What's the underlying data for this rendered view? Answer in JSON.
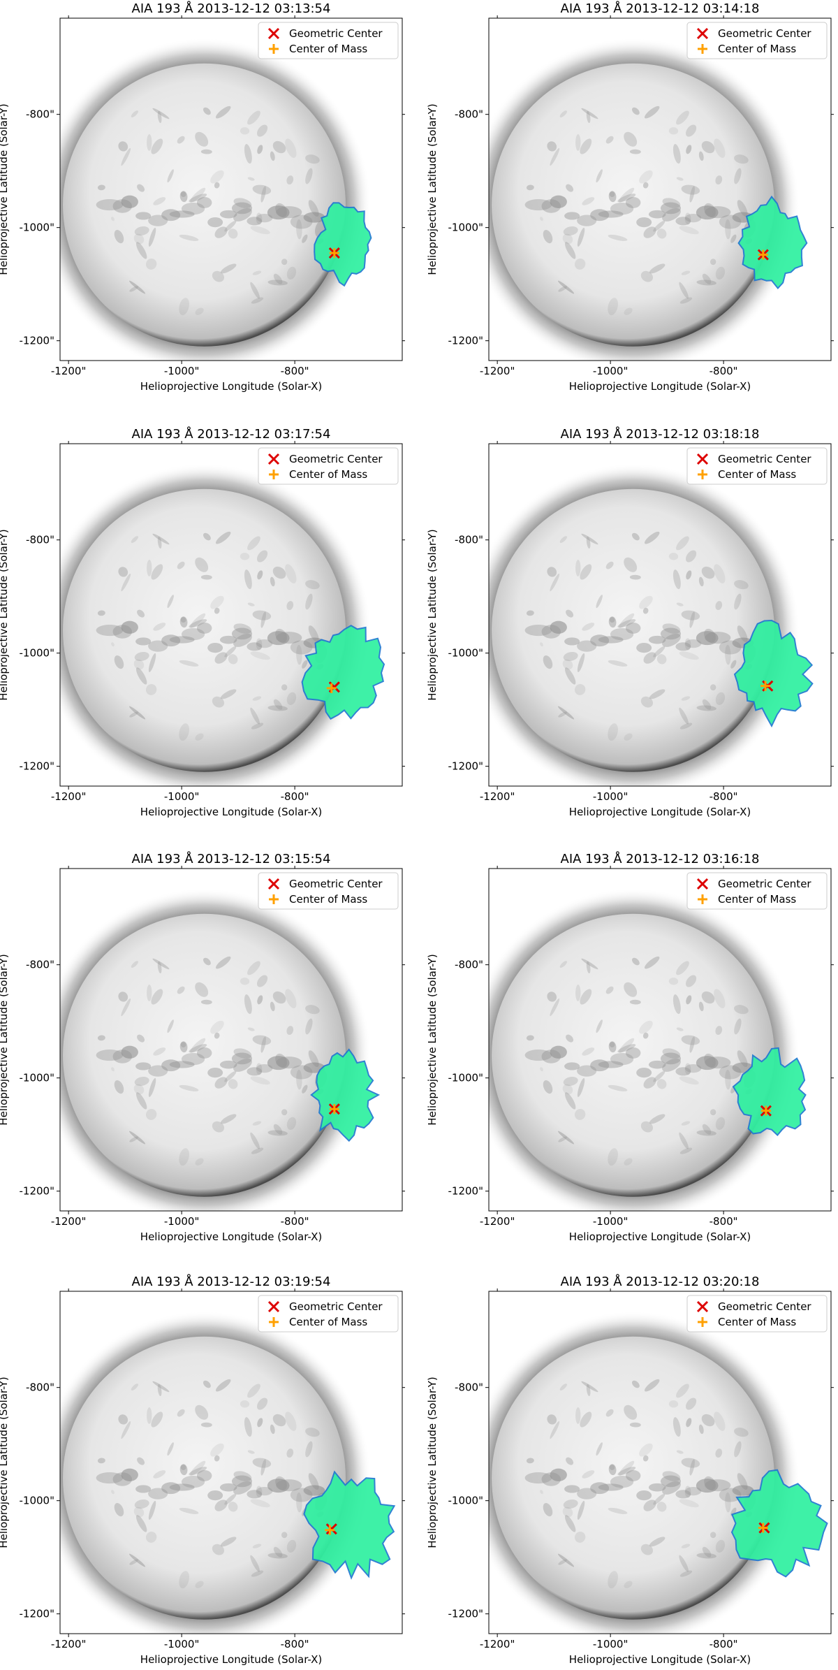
{
  "figure": {
    "legend": {
      "items": [
        {
          "label": "Geometric Center",
          "marker": "x",
          "color": "#dd0000"
        },
        {
          "label": "Center of Mass",
          "marker": "+",
          "color": "#ffa000"
        }
      ]
    },
    "colors": {
      "disk": "#f0f0f0",
      "disk_edge": "#3a3a3a",
      "dark_structure": "#555555",
      "mask_fill": "#2ef0a0",
      "mask_edge": "#1f78d0",
      "geometric_center": "#dd0000",
      "center_of_mass": "#ffa000"
    }
  },
  "chart_data": [
    {
      "type": "image",
      "title": "AIA 193 Å 2013-12-12 03:13:54",
      "xlabel": "Helioprojective Longitude (Solar-X)",
      "ylabel": "Helioprojective Latitude (Solar-Y)",
      "xlim": [
        -1215,
        -610
      ],
      "ylim": [
        -1235,
        -630
      ],
      "xticks": [
        "-1200\"",
        "-1000\"",
        "-800\""
      ],
      "xtick_values": [
        -1200,
        -1000,
        -800
      ],
      "yticks": [
        "-800\"",
        "-1000\"",
        "-1200\""
      ],
      "ytick_values": [
        -800,
        -1000,
        -1200
      ],
      "legend_position": "top-right",
      "geometric_center": [
        -730,
        -1045
      ],
      "center_of_mass": [
        -730,
        -1045
      ],
      "region_extent_x": [
        -770,
        -655
      ],
      "region_extent_y": [
        -1110,
        -950
      ]
    },
    {
      "type": "image",
      "title": "AIA 193 Å 2013-12-12 03:14:18",
      "xlabel": "Helioprojective Longitude (Solar-X)",
      "ylabel": "Helioprojective Latitude (Solar-Y)",
      "xlim": [
        -1215,
        -610
      ],
      "ylim": [
        -1235,
        -630
      ],
      "xticks": [
        "-1200\"",
        "-1000\"",
        "-800\""
      ],
      "xtick_values": [
        -1200,
        -1000,
        -800
      ],
      "yticks": [
        "-800\"",
        "-1000\"",
        "-1200\""
      ],
      "ytick_values": [
        -800,
        -1000,
        -1200
      ],
      "legend_position": "top-right",
      "geometric_center": [
        -730,
        -1048
      ],
      "center_of_mass": [
        -730,
        -1048
      ],
      "region_extent_x": [
        -780,
        -650
      ],
      "region_extent_y": [
        -1110,
        -945
      ]
    },
    {
      "type": "image",
      "title": "AIA 193 Å 2013-12-12 03:17:54",
      "xlabel": "Helioprojective Longitude (Solar-X)",
      "ylabel": "Helioprojective Latitude (Solar-Y)",
      "xlim": [
        -1215,
        -610
      ],
      "ylim": [
        -1235,
        -630
      ],
      "xticks": [
        "-1200\"",
        "-1000\"",
        "-800\""
      ],
      "xtick_values": [
        -1200,
        -1000,
        -800
      ],
      "yticks": [
        "-800\"",
        "-1000\"",
        "-1200\""
      ],
      "ytick_values": [
        -800,
        -1000,
        -1200
      ],
      "legend_position": "top-right",
      "geometric_center": [
        -730,
        -1060
      ],
      "center_of_mass": [
        -735,
        -1062
      ],
      "region_extent_x": [
        -790,
        -635
      ],
      "region_extent_y": [
        -1130,
        -940
      ]
    },
    {
      "type": "image",
      "title": "AIA 193 Å 2013-12-12 03:18:18",
      "xlabel": "Helioprojective Longitude (Solar-X)",
      "ylabel": "Helioprojective Latitude (Solar-Y)",
      "xlim": [
        -1215,
        -610
      ],
      "ylim": [
        -1235,
        -630
      ],
      "xticks": [
        "-1200\"",
        "-1000\"",
        "-800\""
      ],
      "xtick_values": [
        -1200,
        -1000,
        -800
      ],
      "yticks": [
        "-800\"",
        "-1000\"",
        "-1200\""
      ],
      "ytick_values": [
        -800,
        -1000,
        -1200
      ],
      "legend_position": "top-right",
      "geometric_center": [
        -722,
        -1058
      ],
      "center_of_mass": [
        -726,
        -1058
      ],
      "region_extent_x": [
        -790,
        -640
      ],
      "region_extent_y": [
        -1135,
        -940
      ]
    },
    {
      "type": "image",
      "title": "AIA 193 Å 2013-12-12 03:15:54",
      "xlabel": "Helioprojective Longitude (Solar-X)",
      "ylabel": "Helioprojective Latitude (Solar-Y)",
      "xlim": [
        -1215,
        -610
      ],
      "ylim": [
        -1235,
        -630
      ],
      "xticks": [
        "-1200\"",
        "-1000\"",
        "-800\""
      ],
      "xtick_values": [
        -1200,
        -1000,
        -800
      ],
      "yticks": [
        "-800\"",
        "-1000\"",
        "-1200\""
      ],
      "ytick_values": [
        -800,
        -1000,
        -1200
      ],
      "legend_position": "top-right",
      "geometric_center": [
        -730,
        -1055
      ],
      "center_of_mass": [
        -730,
        -1055
      ],
      "region_extent_x": [
        -780,
        -650
      ],
      "region_extent_y": [
        -1115,
        -945
      ]
    },
    {
      "type": "image",
      "title": "AIA 193 Å 2013-12-12 03:16:18",
      "xlabel": "Helioprojective Longitude (Solar-X)",
      "ylabel": "Helioprojective Latitude (Solar-Y)",
      "xlim": [
        -1215,
        -610
      ],
      "ylim": [
        -1235,
        -630
      ],
      "xticks": [
        "-1200\"",
        "-1000\"",
        "-800\""
      ],
      "xtick_values": [
        -1200,
        -1000,
        -800
      ],
      "yticks": [
        "-800\"",
        "-1000\"",
        "-1200\""
      ],
      "ytick_values": [
        -800,
        -1000,
        -1200
      ],
      "legend_position": "top-right",
      "geometric_center": [
        -725,
        -1058
      ],
      "center_of_mass": [
        -725,
        -1058
      ],
      "region_extent_x": [
        -785,
        -645
      ],
      "region_extent_y": [
        -1115,
        -945
      ]
    },
    {
      "type": "image",
      "title": "AIA 193 Å 2013-12-12 03:19:54",
      "xlabel": "Helioprojective Longitude (Solar-X)",
      "ylabel": "Helioprojective Latitude (Solar-Y)",
      "xlim": [
        -1215,
        -610
      ],
      "ylim": [
        -1235,
        -630
      ],
      "xticks": [
        "-1200\"",
        "-1000\"",
        "-800\""
      ],
      "xtick_values": [
        -1200,
        -1000,
        -800
      ],
      "yticks": [
        "-800\"",
        "-1000\"",
        "-1200\""
      ],
      "ytick_values": [
        -800,
        -1000,
        -1200
      ],
      "legend_position": "top-right",
      "geometric_center": [
        -735,
        -1050
      ],
      "center_of_mass": [
        -738,
        -1052
      ],
      "region_extent_x": [
        -790,
        -610
      ],
      "region_extent_y": [
        -1140,
        -940
      ]
    },
    {
      "type": "image",
      "title": "AIA 193 Å 2013-12-12 03:20:18",
      "xlabel": "Helioprojective Longitude (Solar-X)",
      "ylabel": "Helioprojective Latitude (Solar-Y)",
      "xlim": [
        -1215,
        -610
      ],
      "ylim": [
        -1235,
        -630
      ],
      "xticks": [
        "-1200\"",
        "-1000\"",
        "-800\""
      ],
      "xtick_values": [
        -1200,
        -1000,
        -800
      ],
      "yticks": [
        "-800\"",
        "-1000\"",
        "-1200\""
      ],
      "ytick_values": [
        -800,
        -1000,
        -1200
      ],
      "legend_position": "top-right",
      "geometric_center": [
        -728,
        -1048
      ],
      "center_of_mass": [
        -730,
        -1048
      ],
      "region_extent_x": [
        -795,
        -615
      ],
      "region_extent_y": [
        -1140,
        -940
      ]
    }
  ]
}
